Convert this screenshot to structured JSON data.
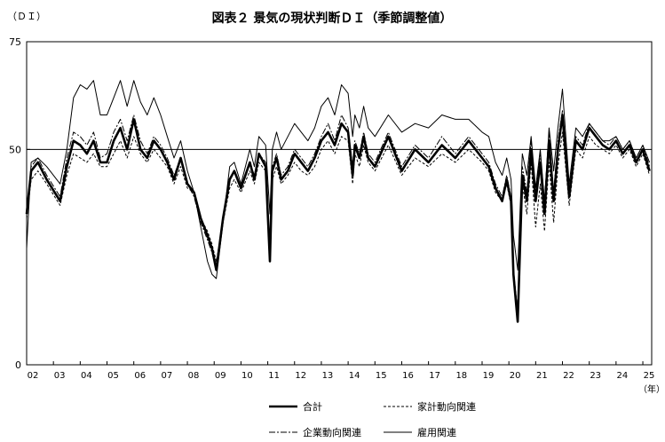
{
  "chart_data": {
    "type": "line",
    "title": "図表２ 景気の現状判断ＤＩ（季節調整値）",
    "ylabel": "（ＤＩ）",
    "xlabel": "（年）",
    "ylim": [
      0,
      75
    ],
    "reference_line": 50,
    "y_ticks": [
      0,
      50,
      75
    ],
    "x_range": [
      2002.0,
      2025.33
    ],
    "x_ticks": [
      {
        "label": "02",
        "x": 2002.0
      },
      {
        "label": "03",
        "x": 2003.0
      },
      {
        "label": "04",
        "x": 2004.0
      },
      {
        "label": "05",
        "x": 2005.0
      },
      {
        "label": "06",
        "x": 2006.0
      },
      {
        "label": "07",
        "x": 2007.0
      },
      {
        "label": "08",
        "x": 2008.0
      },
      {
        "label": "09",
        "x": 2009.0
      },
      {
        "label": "10",
        "x": 2010.0
      },
      {
        "label": "11",
        "x": 2011.0
      },
      {
        "label": "12",
        "x": 2012.0
      },
      {
        "label": "13",
        "x": 2013.0
      },
      {
        "label": "14",
        "x": 2014.0
      },
      {
        "label": "15",
        "x": 2015.0
      },
      {
        "label": "16",
        "x": 2016.0
      },
      {
        "label": "17",
        "x": 2017.0
      },
      {
        "label": "18",
        "x": 2018.0
      },
      {
        "label": "19",
        "x": 2019.0
      },
      {
        "label": "20",
        "x": 2020.0
      },
      {
        "label": "21",
        "x": 2021.0
      },
      {
        "label": "22",
        "x": 2022.0
      },
      {
        "label": "23",
        "x": 2023.0
      },
      {
        "label": "24",
        "x": 2024.0
      },
      {
        "label": "25",
        "x": 2025.0
      }
    ],
    "legend": {
      "placement": "bottom"
    },
    "series": [
      {
        "name": "合計",
        "style": "bold",
        "x": [
          2002.0,
          2002.17,
          2002.42,
          2002.75,
          2003.25,
          2003.5,
          2003.75,
          2004.0,
          2004.25,
          2004.5,
          2004.75,
          2005.0,
          2005.25,
          2005.5,
          2005.75,
          2006.0,
          2006.25,
          2006.5,
          2006.75,
          2007.0,
          2007.25,
          2007.5,
          2007.75,
          2008.0,
          2008.25,
          2008.5,
          2008.75,
          2008.92,
          2009.08,
          2009.33,
          2009.58,
          2009.75,
          2010.0,
          2010.33,
          2010.5,
          2010.67,
          2010.92,
          2011.08,
          2011.17,
          2011.33,
          2011.5,
          2011.75,
          2012.0,
          2012.25,
          2012.5,
          2012.75,
          2013.0,
          2013.25,
          2013.5,
          2013.75,
          2014.0,
          2014.17,
          2014.25,
          2014.42,
          2014.58,
          2014.75,
          2015.0,
          2015.5,
          2016.0,
          2016.5,
          2017.0,
          2017.5,
          2018.0,
          2018.5,
          2019.0,
          2019.25,
          2019.5,
          2019.75,
          2019.92,
          2020.08,
          2020.17,
          2020.33,
          2020.5,
          2020.67,
          2020.83,
          2021.0,
          2021.17,
          2021.33,
          2021.5,
          2021.67,
          2021.83,
          2022.0,
          2022.25,
          2022.5,
          2022.75,
          2023.0,
          2023.25,
          2023.5,
          2023.75,
          2024.0,
          2024.25,
          2024.5,
          2024.75,
          2025.0,
          2025.25
        ],
        "values": [
          35,
          45,
          47,
          43,
          38,
          46,
          52,
          51,
          49,
          52,
          47,
          47,
          52,
          55,
          50,
          57,
          50,
          48,
          52,
          50,
          47,
          43,
          48,
          42,
          40,
          34,
          30,
          27,
          22,
          34,
          43,
          45,
          41,
          47,
          43,
          49,
          46,
          24,
          45,
          48,
          43,
          45,
          49,
          47,
          45,
          48,
          52,
          54,
          51,
          56,
          54,
          44,
          51,
          48,
          53,
          48,
          46,
          53,
          45,
          50,
          47,
          51,
          48,
          52,
          48,
          46,
          41,
          38,
          43,
          38,
          21,
          10,
          44,
          38,
          50,
          38,
          47,
          35,
          52,
          38,
          50,
          58,
          39,
          52,
          50,
          55,
          53,
          51,
          50,
          52,
          49,
          51,
          47,
          50,
          45
        ]
      },
      {
        "name": "家計動向関連",
        "style": "dashed",
        "x": [
          2002.0,
          2002.17,
          2002.42,
          2002.75,
          2003.25,
          2003.5,
          2003.75,
          2004.0,
          2004.25,
          2004.5,
          2004.75,
          2005.0,
          2005.25,
          2005.5,
          2005.75,
          2006.0,
          2006.25,
          2006.5,
          2006.75,
          2007.0,
          2007.25,
          2007.5,
          2007.75,
          2008.0,
          2008.25,
          2008.5,
          2008.75,
          2008.92,
          2009.08,
          2009.33,
          2009.58,
          2009.75,
          2010.0,
          2010.33,
          2010.5,
          2010.67,
          2010.92,
          2011.08,
          2011.17,
          2011.33,
          2011.5,
          2011.75,
          2012.0,
          2012.25,
          2012.5,
          2012.75,
          2013.0,
          2013.25,
          2013.5,
          2013.75,
          2014.0,
          2014.17,
          2014.25,
          2014.42,
          2014.58,
          2014.75,
          2015.0,
          2015.5,
          2016.0,
          2016.5,
          2017.0,
          2017.5,
          2018.0,
          2018.5,
          2019.0,
          2019.25,
          2019.5,
          2019.75,
          2019.92,
          2020.08,
          2020.17,
          2020.33,
          2020.5,
          2020.67,
          2020.83,
          2021.0,
          2021.17,
          2021.33,
          2021.5,
          2021.67,
          2021.83,
          2022.0,
          2022.25,
          2022.5,
          2022.75,
          2023.0,
          2023.25,
          2023.5,
          2023.75,
          2024.0,
          2024.25,
          2024.5,
          2024.75,
          2025.0,
          2025.25
        ],
        "values": [
          34,
          43,
          45,
          42,
          37,
          44,
          49,
          48,
          47,
          49,
          46,
          46,
          49,
          52,
          48,
          53,
          49,
          47,
          50,
          48,
          46,
          42,
          46,
          41,
          40,
          34,
          31,
          28,
          24,
          33,
          41,
          43,
          40,
          45,
          42,
          47,
          45,
          26,
          43,
          46,
          42,
          44,
          47,
          45,
          44,
          46,
          50,
          52,
          49,
          53,
          52,
          42,
          49,
          46,
          51,
          47,
          45,
          51,
          44,
          48,
          46,
          49,
          47,
          50,
          47,
          45,
          40,
          38,
          42,
          37,
          22,
          12,
          42,
          35,
          47,
          32,
          42,
          31,
          47,
          33,
          46,
          54,
          37,
          50,
          48,
          53,
          51,
          50,
          49,
          51,
          48,
          50,
          46,
          49,
          44
        ]
      },
      {
        "name": "企業動向関連",
        "style": "dashdot",
        "x": [
          2002.0,
          2002.17,
          2002.42,
          2002.75,
          2003.25,
          2003.5,
          2003.75,
          2004.0,
          2004.25,
          2004.5,
          2004.75,
          2005.0,
          2005.25,
          2005.5,
          2005.75,
          2006.0,
          2006.25,
          2006.5,
          2006.75,
          2007.0,
          2007.25,
          2007.5,
          2007.75,
          2008.0,
          2008.25,
          2008.5,
          2008.75,
          2008.92,
          2009.08,
          2009.33,
          2009.58,
          2009.75,
          2010.0,
          2010.33,
          2010.5,
          2010.67,
          2010.92,
          2011.08,
          2011.17,
          2011.33,
          2011.5,
          2011.75,
          2012.0,
          2012.25,
          2012.5,
          2012.75,
          2013.0,
          2013.25,
          2013.5,
          2013.75,
          2014.0,
          2014.17,
          2014.25,
          2014.42,
          2014.58,
          2014.75,
          2015.0,
          2015.5,
          2016.0,
          2016.5,
          2017.0,
          2017.5,
          2018.0,
          2018.5,
          2019.0,
          2019.25,
          2019.5,
          2019.75,
          2019.92,
          2020.08,
          2020.17,
          2020.33,
          2020.5,
          2020.67,
          2020.83,
          2021.0,
          2021.17,
          2021.33,
          2021.5,
          2021.67,
          2021.83,
          2022.0,
          2022.25,
          2022.5,
          2022.75,
          2023.0,
          2023.25,
          2023.5,
          2023.75,
          2024.0,
          2024.25,
          2024.5,
          2024.75,
          2025.0,
          2025.25
        ],
        "values": [
          36,
          46,
          48,
          44,
          39,
          48,
          54,
          53,
          51,
          54,
          48,
          49,
          54,
          57,
          52,
          58,
          52,
          49,
          53,
          51,
          48,
          44,
          48,
          42,
          39,
          33,
          29,
          26,
          22,
          33,
          43,
          45,
          41,
          47,
          44,
          49,
          47,
          25,
          46,
          49,
          44,
          46,
          50,
          48,
          46,
          49,
          53,
          56,
          52,
          58,
          55,
          46,
          52,
          49,
          54,
          49,
          47,
          54,
          46,
          51,
          48,
          53,
          49,
          53,
          49,
          47,
          42,
          39,
          44,
          39,
          22,
          12,
          46,
          40,
          52,
          40,
          49,
          38,
          54,
          40,
          52,
          59,
          40,
          53,
          51,
          56,
          54,
          52,
          51,
          53,
          50,
          52,
          48,
          51,
          46
        ]
      },
      {
        "name": "雇用関連",
        "style": "thin",
        "x": [
          2002.0,
          2002.17,
          2002.42,
          2002.75,
          2003.25,
          2003.5,
          2003.75,
          2004.0,
          2004.25,
          2004.5,
          2004.75,
          2005.0,
          2005.25,
          2005.5,
          2005.75,
          2006.0,
          2006.25,
          2006.5,
          2006.75,
          2007.0,
          2007.25,
          2007.5,
          2007.75,
          2008.0,
          2008.25,
          2008.5,
          2008.75,
          2008.92,
          2009.08,
          2009.33,
          2009.58,
          2009.75,
          2010.0,
          2010.33,
          2010.5,
          2010.67,
          2010.92,
          2011.08,
          2011.17,
          2011.33,
          2011.5,
          2011.75,
          2012.0,
          2012.25,
          2012.5,
          2012.75,
          2013.0,
          2013.25,
          2013.5,
          2013.75,
          2014.0,
          2014.17,
          2014.25,
          2014.42,
          2014.58,
          2014.75,
          2015.0,
          2015.5,
          2016.0,
          2016.5,
          2017.0,
          2017.5,
          2018.0,
          2018.5,
          2019.0,
          2019.25,
          2019.5,
          2019.75,
          2019.92,
          2020.08,
          2020.17,
          2020.33,
          2020.5,
          2020.67,
          2020.83,
          2021.0,
          2021.17,
          2021.33,
          2021.5,
          2021.67,
          2021.83,
          2022.0,
          2022.25,
          2022.5,
          2022.75,
          2023.0,
          2023.25,
          2023.5,
          2023.75,
          2024.0,
          2024.25,
          2024.5,
          2024.75,
          2025.0,
          2025.25
        ],
        "values": [
          27,
          47,
          48,
          46,
          42,
          50,
          62,
          65,
          64,
          66,
          58,
          58,
          62,
          66,
          60,
          66,
          61,
          58,
          62,
          58,
          53,
          48,
          52,
          45,
          40,
          32,
          24,
          21,
          20,
          33,
          46,
          47,
          42,
          50,
          46,
          53,
          51,
          35,
          50,
          54,
          50,
          53,
          56,
          54,
          52,
          55,
          60,
          62,
          58,
          65,
          63,
          53,
          58,
          55,
          60,
          55,
          53,
          58,
          54,
          56,
          55,
          58,
          57,
          57,
          54,
          53,
          47,
          44,
          48,
          43,
          30,
          22,
          49,
          44,
          53,
          41,
          50,
          38,
          55,
          45,
          55,
          64,
          42,
          55,
          53,
          56,
          54,
          52,
          52,
          53,
          50,
          52,
          48,
          51,
          47
        ]
      }
    ]
  }
}
